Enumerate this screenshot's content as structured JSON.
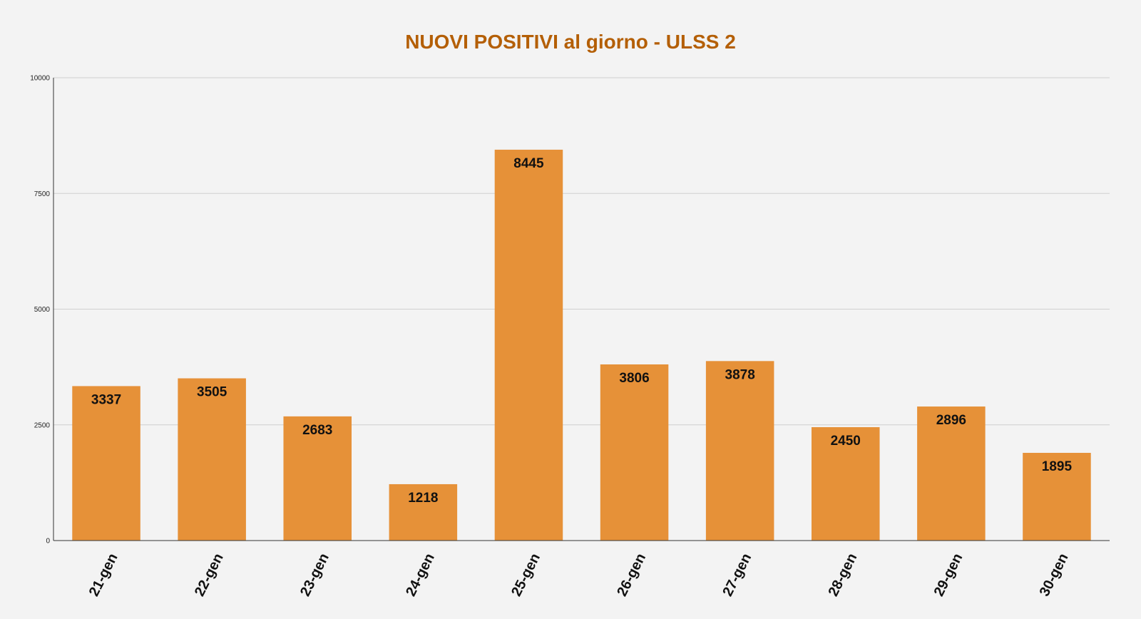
{
  "chart_data": {
    "type": "bar",
    "title": "NUOVI POSITIVI al giorno - ULSS 2",
    "xlabel": "",
    "ylabel": "",
    "categories": [
      "21-gen",
      "22-gen",
      "23-gen",
      "24-gen",
      "25-gen",
      "26-gen",
      "27-gen",
      "28-gen",
      "29-gen",
      "30-gen"
    ],
    "values": [
      3337,
      3505,
      2683,
      1218,
      8445,
      3806,
      3878,
      2450,
      2896,
      1895
    ],
    "ylim": [
      0,
      10000
    ],
    "yticks": [
      "0",
      "2500",
      "5000",
      "7500",
      "10000"
    ],
    "grid": true,
    "legend": "none",
    "colors": {
      "bar": "#e69138",
      "title": "#b45f06",
      "gridline": "#cfcfcf",
      "axis": "#333333",
      "background": "#f3f3f3"
    }
  }
}
